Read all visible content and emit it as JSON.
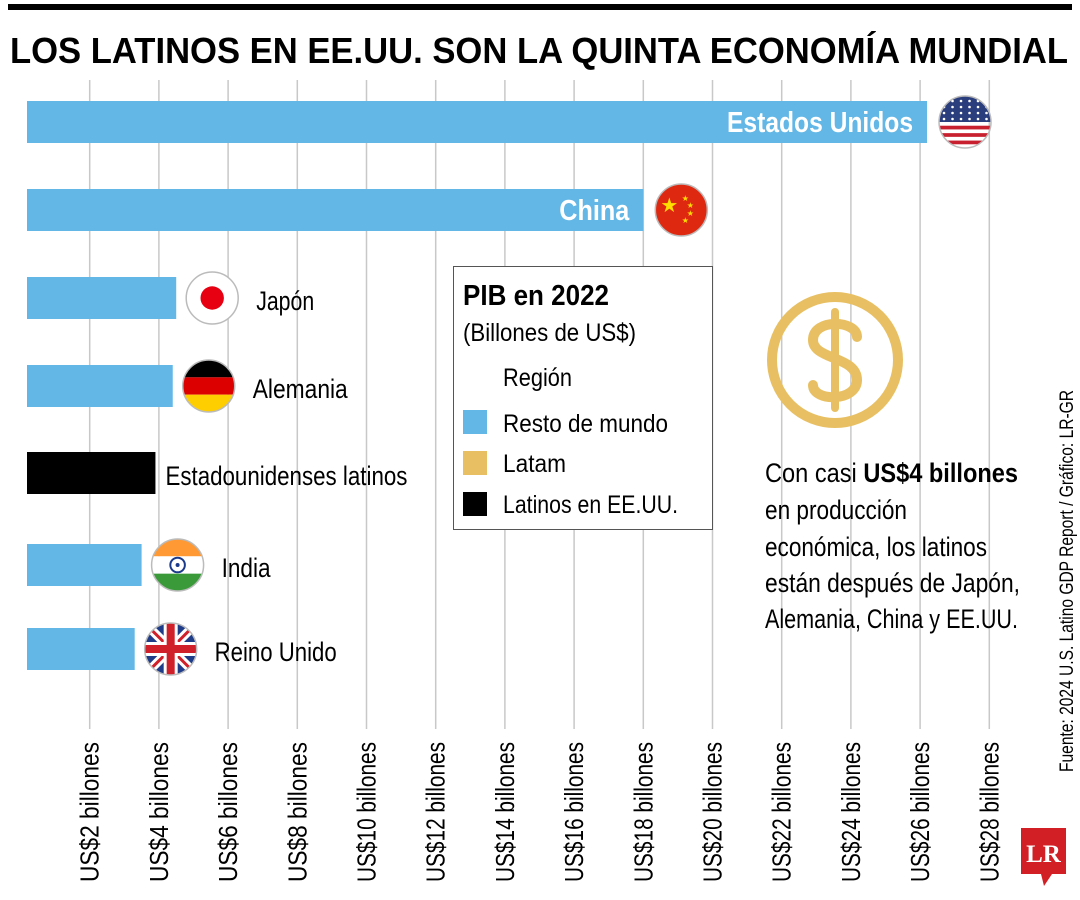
{
  "title": "LOS LATINOS EN EE.UU. SON LA QUINTA ECONOMÍA MUNDIAL",
  "colors": {
    "resto": "#62b7e6",
    "latam": "#e8c063",
    "latinos_eeuu": "#000000",
    "grid": "#c8c8c8",
    "logo": "#d21f26"
  },
  "chart_data": {
    "type": "bar",
    "orientation": "horizontal",
    "categories": [
      "Estados Unidos",
      "China",
      "Japón",
      "Alemania",
      "Estadounidenses latinos",
      "India",
      "Reino Unido"
    ],
    "values": [
      26.2,
      18.0,
      4.5,
      4.4,
      3.9,
      3.5,
      3.3
    ],
    "regions": [
      "Resto de mundo",
      "Resto de mundo",
      "Resto de mundo",
      "Resto de mundo",
      "Latinos en EE.UU.",
      "Resto de mundo",
      "Resto de mundo"
    ],
    "flags": [
      "us-flag",
      "china-flag",
      "japan-flag",
      "germany-flag",
      null,
      "india-flag",
      "uk-flag"
    ],
    "xlim": [
      0,
      28
    ],
    "xticks": [
      "US$2 billones",
      "US$4 billones",
      "US$6 billones",
      "US$8 billones",
      "US$10 billones",
      "US$12 billones",
      "US$14 billones",
      "US$16 billones",
      "US$18 billones",
      "US$20 billones",
      "US$22 billones",
      "US$24 billones",
      "US$26 billones",
      "US$28 billones"
    ],
    "xtick_values": [
      2,
      4,
      6,
      8,
      10,
      12,
      14,
      16,
      18,
      20,
      22,
      24,
      26,
      28
    ],
    "grid": true
  },
  "legend": {
    "title": "PIB en 2022",
    "subtitle": "(Billones de US$)",
    "header": "Región",
    "items": [
      {
        "label": "Resto de mundo",
        "color": "#62b7e6"
      },
      {
        "label": "Latam",
        "color": "#e8c063"
      },
      {
        "label": "Latinos en EE.UU.",
        "color": "#000000"
      }
    ]
  },
  "annotation": {
    "icon": "dollar-coin-icon",
    "lead": "Con casi ",
    "bold": "US$4 billones",
    "lines": [
      "en producción",
      "económica, los latinos",
      "están después de Japón,",
      "Alemania, China y EE.UU."
    ]
  },
  "source": "Fuente: 2024 U.S. Latino GDP Report / Gráfico: LR-GR",
  "logo": "LR"
}
